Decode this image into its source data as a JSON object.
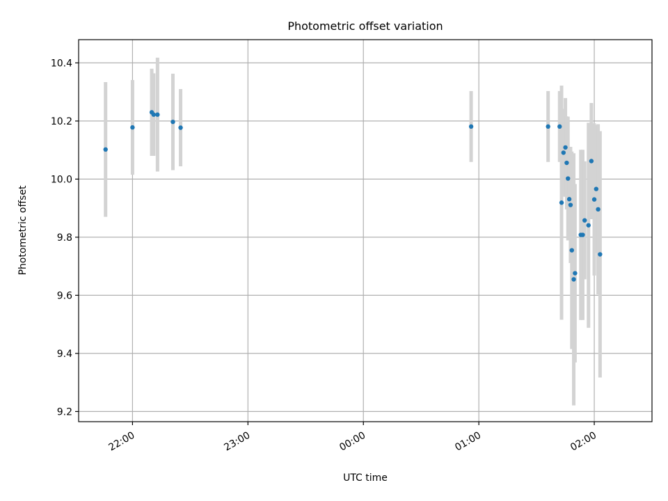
{
  "chart_data": {
    "type": "scatter",
    "title": "Photometric offset variation",
    "xlabel": "UTC time",
    "ylabel": "Photometric offset",
    "x_axis_type": "time",
    "xlim": [
      "21:32",
      "02:30"
    ],
    "ylim": [
      9.165,
      10.48
    ],
    "grid": true,
    "x_ticks": [
      "22:00",
      "23:00",
      "00:00",
      "01:00",
      "02:00"
    ],
    "y_ticks": [
      "9.2",
      "9.4",
      "9.6",
      "9.8",
      "10.0",
      "10.2",
      "10.4"
    ],
    "marker_color": "#1f77b4",
    "errorbar_color": "#d3d3d3",
    "series": [
      {
        "points": [
          {
            "x": "21:46:00",
            "y": 10.102,
            "err": 0.232
          },
          {
            "x": "22:00:00",
            "y": 10.178,
            "err": 0.163
          },
          {
            "x": "22:10:00",
            "y": 10.23,
            "err": 0.15
          },
          {
            "x": "22:11:00",
            "y": 10.222,
            "err": 0.142
          },
          {
            "x": "22:13:00",
            "y": 10.222,
            "err": 0.196
          },
          {
            "x": "22:21:00",
            "y": 10.197,
            "err": 0.166
          },
          {
            "x": "22:25:00",
            "y": 10.177,
            "err": 0.133
          },
          {
            "x": "00:56:00",
            "y": 10.181,
            "err": 0.122
          },
          {
            "x": "01:36:00",
            "y": 10.181,
            "err": 0.122
          },
          {
            "x": "01:42:00",
            "y": 10.181,
            "err": 0.122
          },
          {
            "x": "01:43:00",
            "y": 9.919,
            "err": 0.403
          },
          {
            "x": "01:44:00",
            "y": 10.091,
            "err": 0.151
          },
          {
            "x": "01:45:00",
            "y": 10.109,
            "err": 0.17
          },
          {
            "x": "01:45:40",
            "y": 10.056,
            "err": 0.16
          },
          {
            "x": "01:46:20",
            "y": 10.002,
            "err": 0.213
          },
          {
            "x": "01:47:00",
            "y": 9.931,
            "err": 0.113
          },
          {
            "x": "01:47:40",
            "y": 9.911,
            "err": 0.2
          },
          {
            "x": "01:48:20",
            "y": 9.755,
            "err": 0.34
          },
          {
            "x": "01:49:20",
            "y": 9.655,
            "err": 0.434
          },
          {
            "x": "01:50:00",
            "y": 9.676,
            "err": 0.307
          },
          {
            "x": "01:53:00",
            "y": 9.808,
            "err": 0.293
          },
          {
            "x": "01:54:00",
            "y": 9.808,
            "err": 0.293
          },
          {
            "x": "01:55:00",
            "y": 9.858,
            "err": 0.203
          },
          {
            "x": "01:57:00",
            "y": 9.841,
            "err": 0.353
          },
          {
            "x": "01:58:30",
            "y": 10.062,
            "err": 0.2
          },
          {
            "x": "02:00:00",
            "y": 9.93,
            "err": 0.262
          },
          {
            "x": "02:01:00",
            "y": 9.966,
            "err": 0.22
          },
          {
            "x": "02:02:00",
            "y": 9.896,
            "err": 0.293
          },
          {
            "x": "02:03:00",
            "y": 9.741,
            "err": 0.424
          }
        ]
      }
    ]
  }
}
